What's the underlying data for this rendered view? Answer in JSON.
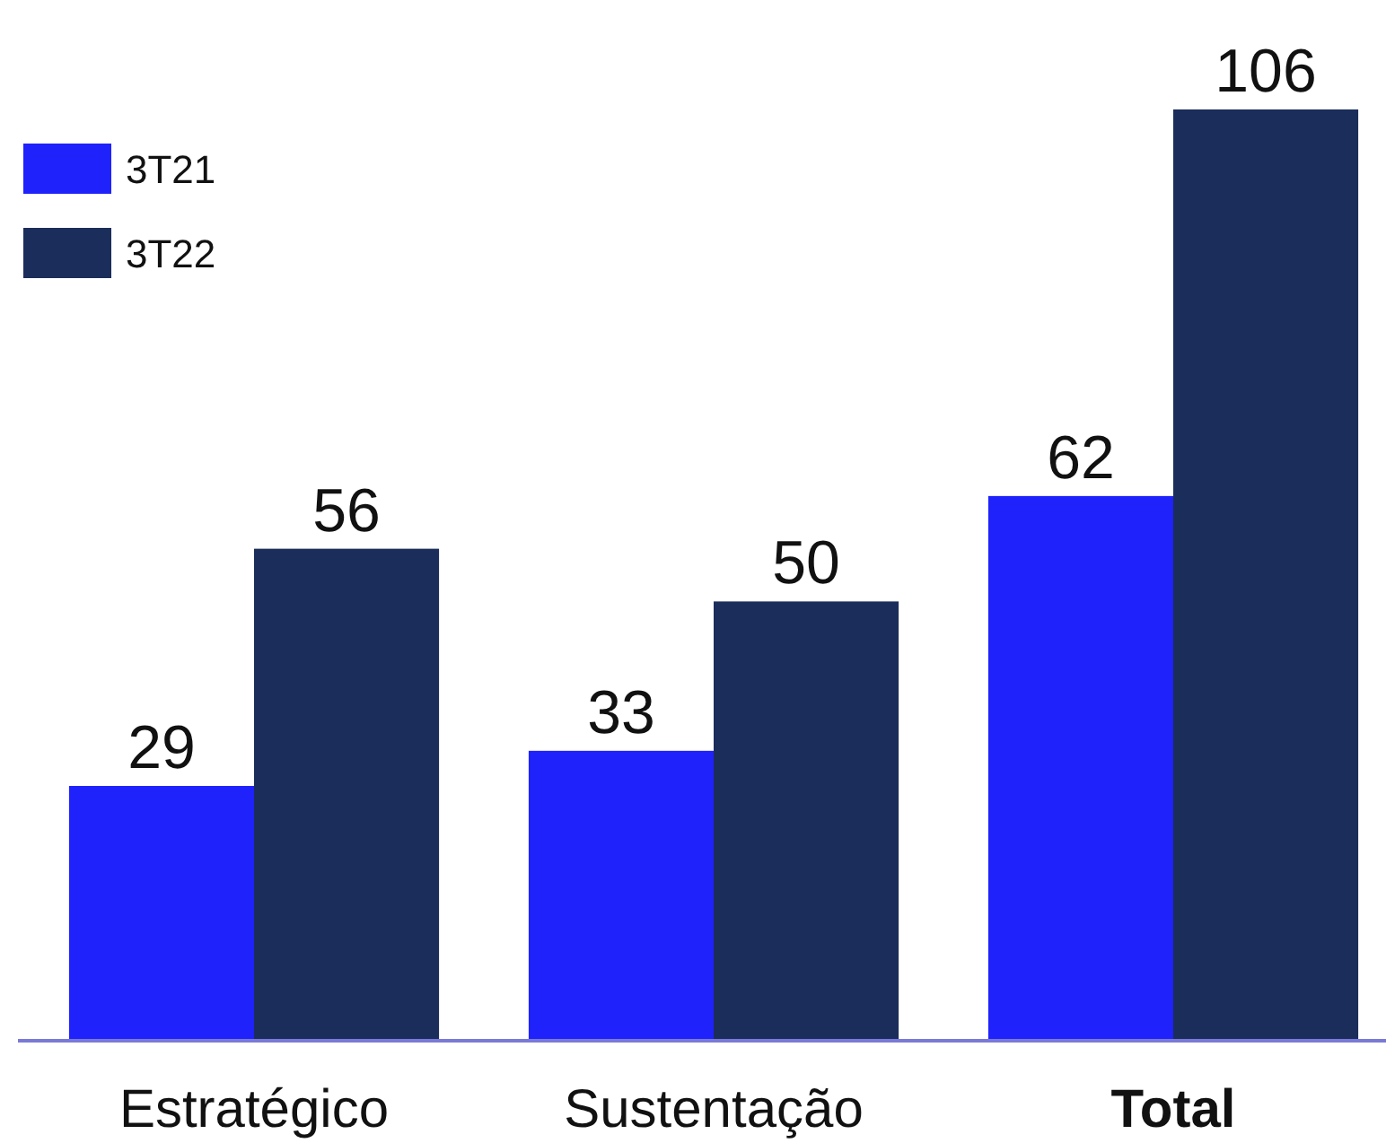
{
  "chart_data": {
    "type": "bar",
    "categories": [
      "Estratégico",
      "Sustentação",
      "Total"
    ],
    "series": [
      {
        "name": "3T21",
        "color": "#1f22fb",
        "values": [
          29,
          33,
          62
        ]
      },
      {
        "name": "3T22",
        "color": "#1b2d5a",
        "values": [
          56,
          50,
          106
        ]
      }
    ],
    "data_labels": true,
    "legend": "top left"
  }
}
